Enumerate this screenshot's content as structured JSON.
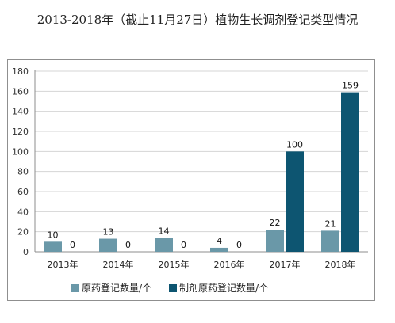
{
  "colors": {
    "primary": "#6a98a8",
    "secondary": "#0d5571"
  },
  "chart_data": {
    "type": "bar",
    "title": "2013-2018年（截止11月27日）植物生长调剂登记类型情况",
    "categories": [
      "2013年",
      "2014年",
      "2015年",
      "2016年",
      "2017年",
      "2018年"
    ],
    "series": [
      {
        "name": "原药登记数量/个",
        "values": [
          10,
          13,
          14,
          4,
          22,
          21
        ],
        "color": "#6a98a8"
      },
      {
        "name": "制剂原药登记数量/个",
        "values": [
          0,
          0,
          0,
          0,
          100,
          159
        ],
        "color": "#0d5571"
      }
    ],
    "yticks": [
      "0",
      "20",
      "40",
      "60",
      "80",
      "100",
      "120",
      "140",
      "160",
      "180"
    ],
    "ylim": [
      0,
      180
    ],
    "grid": true,
    "legend_position": "bottom"
  }
}
